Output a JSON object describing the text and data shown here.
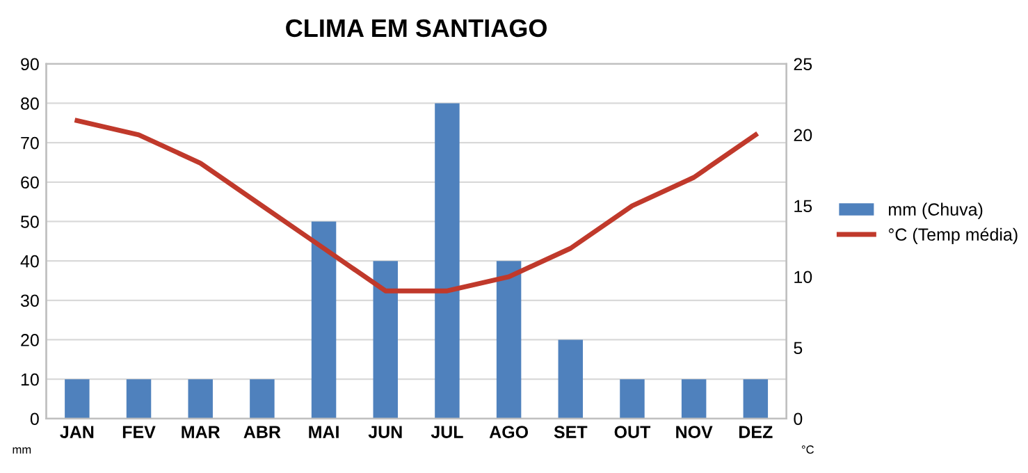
{
  "chart_data": {
    "type": "bar",
    "title": "CLIMA EM SANTIAGO",
    "ylabel": "mm",
    "y2label": "°C",
    "categories": [
      "JAN",
      "FEV",
      "MAR",
      "ABR",
      "MAI",
      "JUN",
      "JUL",
      "AGO",
      "SET",
      "OUT",
      "NOV",
      "DEZ"
    ],
    "series": [
      {
        "name": "mm (Chuva)",
        "color": "#4f81bd",
        "values": [
          10,
          10,
          10,
          10,
          50,
          40,
          80,
          40,
          20,
          10,
          10,
          10
        ]
      },
      {
        "name": "°C (Temp média)",
        "type": "line",
        "axis": "y2",
        "color": "#c0392b",
        "values": [
          21,
          20,
          18,
          15,
          12,
          9,
          9,
          10,
          12,
          15,
          17,
          20
        ]
      }
    ],
    "ylim": [
      0,
      90
    ],
    "yticks": [
      0,
      10,
      20,
      30,
      40,
      50,
      60,
      70,
      80,
      90
    ],
    "y2lim": [
      0,
      25
    ],
    "y2ticks": [
      0,
      5,
      10,
      15,
      20,
      25
    ],
    "grid": "y",
    "legend": "right",
    "marker": "none",
    "line_style": "solid"
  }
}
